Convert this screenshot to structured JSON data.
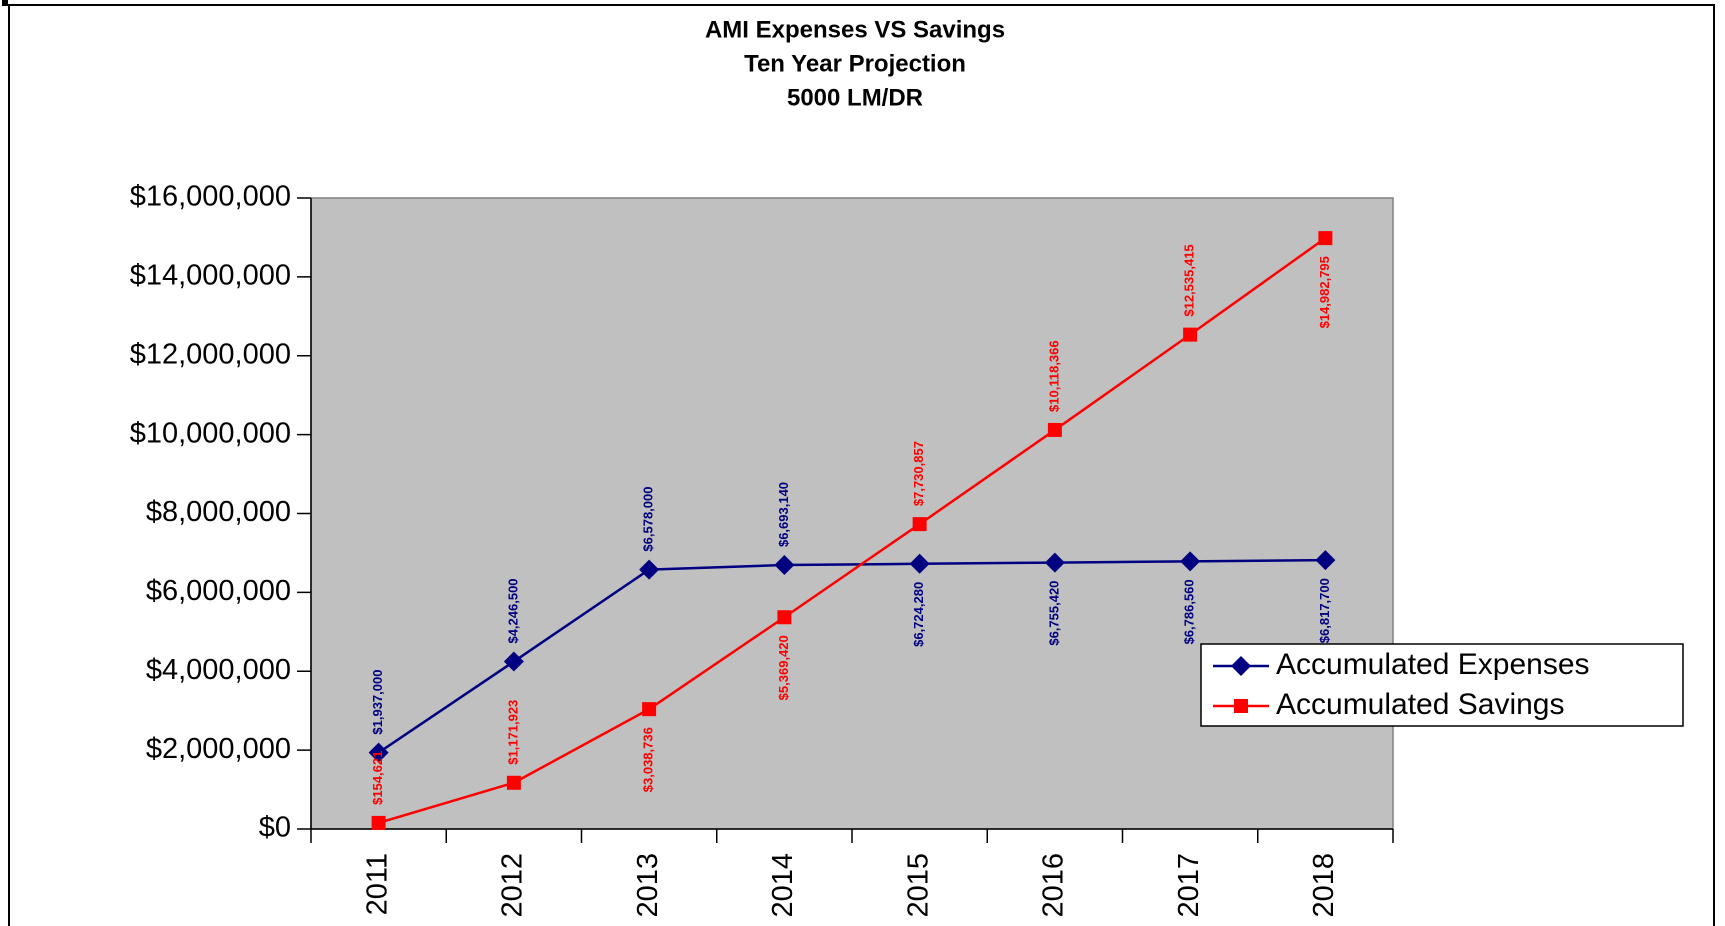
{
  "chart_data": {
    "type": "line",
    "title": [
      "AMI Expenses VS Savings",
      "Ten Year Projection",
      "5000 LM/DR"
    ],
    "categories": [
      "2011",
      "2012",
      "2013",
      "2014",
      "2015",
      "2016",
      "2017",
      "2018"
    ],
    "series": [
      {
        "name": "Accumulated Expenses",
        "color": "#000080",
        "marker": "diamond",
        "values": [
          1937000,
          4246500,
          6578000,
          6693140,
          6724280,
          6755420,
          6786560,
          6817700
        ],
        "value_labels": [
          "$1,937,000",
          "$4,246,500",
          "$6,578,000",
          "$6,693,140",
          "$6,724,280",
          "$6,755,420",
          "$6,786,560",
          "$6,817,700"
        ]
      },
      {
        "name": "Accumulated Savings",
        "color": "#ff0000",
        "marker": "square",
        "values": [
          154621,
          1171923,
          3038736,
          5369420,
          7730857,
          10118366,
          12535415,
          14982795
        ],
        "value_labels": [
          "$154,621",
          "$1,171,923",
          "$3,038,736",
          "$5,369,420",
          "$7,730,857",
          "$10,118,366",
          "$12,535,415",
          "$14,982,795"
        ]
      }
    ],
    "ylim": [
      0,
      16000000
    ],
    "yticks": [
      {
        "value": 0,
        "label": "$0"
      },
      {
        "value": 2000000,
        "label": "$2,000,000"
      },
      {
        "value": 4000000,
        "label": "$4,000,000"
      },
      {
        "value": 6000000,
        "label": "$6,000,000"
      },
      {
        "value": 8000000,
        "label": "$8,000,000"
      },
      {
        "value": 10000000,
        "label": "$10,000,000"
      },
      {
        "value": 12000000,
        "label": "$12,000,000"
      },
      {
        "value": 14000000,
        "label": "$14,000,000"
      },
      {
        "value": 16000000,
        "label": "$16,000,000"
      }
    ],
    "grid": false,
    "plot_background": "#c0c0c0",
    "legend": "right"
  }
}
